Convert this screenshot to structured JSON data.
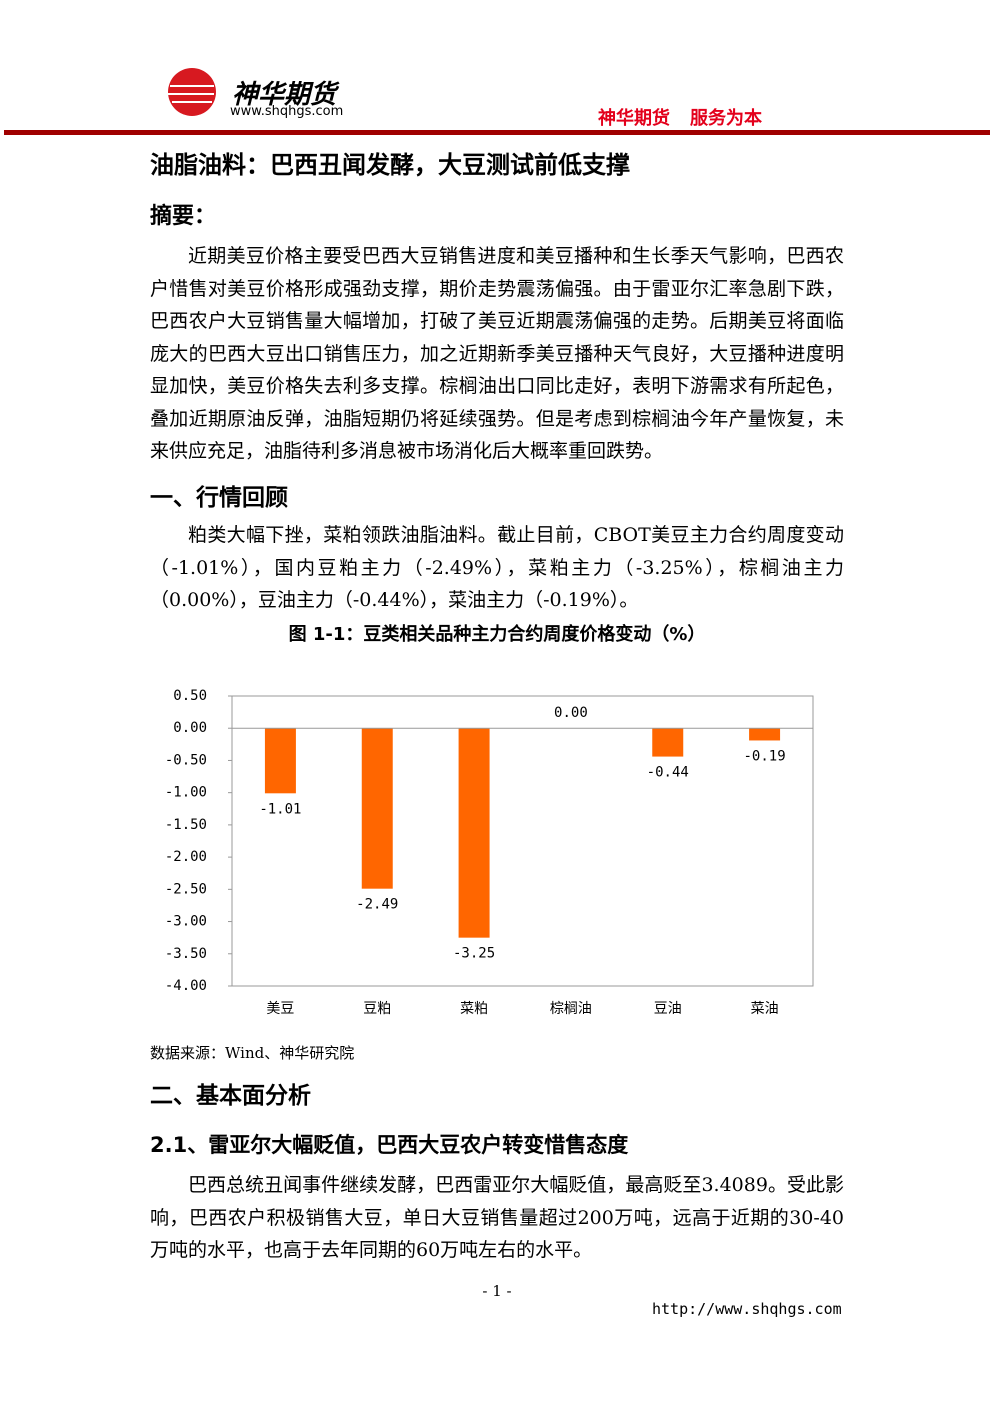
{
  "header": {
    "logo_text": "神华期货",
    "logo_url": "www.shqhgs.com",
    "slogan_left": "神华期货",
    "slogan_right": "服务为本"
  },
  "title": "油脂油料：巴西丑闻发酵，大豆测试前低支撑",
  "abstract": {
    "heading": "摘要：",
    "text": "近期美豆价格主要受巴西大豆销售进度和美豆播种和生长季天气影响，巴西农户惜售对美豆价格形成强劲支撑，期价走势震荡偏强。由于雷亚尔汇率急剧下跌，巴西农户大豆销售量大幅增加，打破了美豆近期震荡偏强的走势。后期美豆将面临庞大的巴西大豆出口销售压力，加之近期新季美豆播种天气良好，大豆播种进度明显加快，美豆价格失去利多支撑。棕榈油出口同比走好，表明下游需求有所起色，叠加近期原油反弹，油脂短期仍将延续强势。但是考虑到棕榈油今年产量恢复，未来供应充足，油脂待利多消息被市场消化后大概率重回跌势。"
  },
  "section1": {
    "heading": "一、行情回顾",
    "text": "粕类大幅下挫，菜粕领跌油脂油料。截止目前，CBOT美豆主力合约周度变动（-1.01%），国内豆粕主力（-2.49%），菜粕主力（-3.25%），棕榈油主力（0.00%），豆油主力（-0.44%），菜油主力（-0.19%）。",
    "figure_caption": "图 1-1：豆类相关品种主力合约周度价格变动（%）",
    "source": "数据来源：Wind、神华研究院"
  },
  "chart_data": {
    "type": "bar",
    "categories": [
      "美豆",
      "豆粕",
      "菜粕",
      "棕榈油",
      "豆油",
      "菜油"
    ],
    "values": [
      -1.01,
      -2.49,
      -3.25,
      0,
      -0.44,
      -0.19
    ],
    "value_labels": [
      "-1.01",
      "-2.49",
      "-3.25",
      "0.00",
      "-0.44",
      "-0.19"
    ],
    "color": "#ff6600",
    "ylim": [
      -4,
      0.5
    ],
    "yticks": [
      {
        "value": 0.5,
        "label": "0.50"
      },
      {
        "value": 0,
        "label": "0.00"
      },
      {
        "value": -0.5,
        "label": "-0.50"
      },
      {
        "value": -1,
        "label": "-1.00"
      },
      {
        "value": -1.5,
        "label": "-1.50"
      },
      {
        "value": -2,
        "label": "-2.00"
      },
      {
        "value": -2.5,
        "label": "-2.50"
      },
      {
        "value": -3,
        "label": "-3.00"
      },
      {
        "value": -3.5,
        "label": "-3.50"
      },
      {
        "value": -4,
        "label": "-4.00"
      }
    ],
    "grid": false
  },
  "section2": {
    "heading": "二、基本面分析",
    "sub_heading": "2.1、雷亚尔大幅贬值，巴西大豆农户转变惜售态度",
    "text": "巴西总统丑闻事件继续发酵，巴西雷亚尔大幅贬值，最高贬至3.4089。受此影响，巴西农户积极销售大豆，单日大豆销售量超过200万吨，远高于近期的30-40万吨的水平，也高于去年同期的60万吨左右的水平。"
  },
  "footer": {
    "page_number": "- 1 -",
    "url": "http://www.shqhgs.com"
  }
}
